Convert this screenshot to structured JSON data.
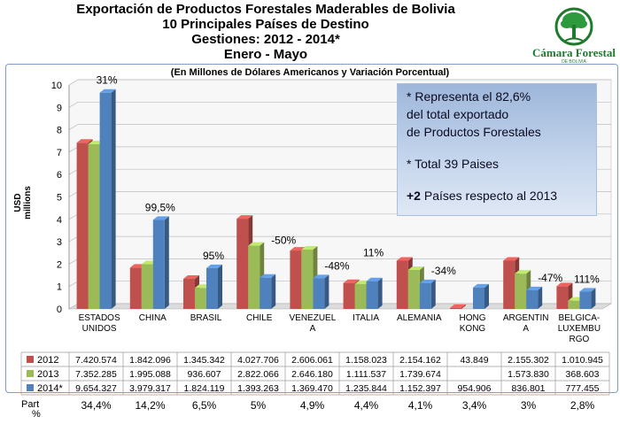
{
  "header": {
    "line1": "Exportación de Productos Forestales Maderables de Bolivia",
    "line2": "10 Principales Países de Destino",
    "line3": "Gestiones: 2012 - 2014*",
    "line4": "Enero - Mayo"
  },
  "logo": {
    "name": "Cámara Forestal",
    "sub": "DE BOLIVIA",
    "icon": "tree-icon",
    "color": "#1f7a2e"
  },
  "chart_data": {
    "type": "bar",
    "subtitle": "(En Millones de Dólares Americanos y Variación Porcentual)",
    "ylabel": "USD millions",
    "ylim": [
      0,
      10
    ],
    "yticks": [
      0,
      1,
      2,
      3,
      4,
      5,
      6,
      7,
      8,
      9,
      10
    ],
    "grid": true,
    "categories": [
      "ESTADOS UNIDOS",
      "CHINA",
      "BRASIL",
      "CHILE",
      "VENEZUELA",
      "ITALIA",
      "ALEMANIA",
      "HONG KONG",
      "ARGENTINA",
      "BELGICA-LUXEMBURGO"
    ],
    "category_label_lines": [
      [
        "ESTADOS",
        "UNIDOS"
      ],
      [
        "CHINA"
      ],
      [
        "BRASIL"
      ],
      [
        "CHILE"
      ],
      [
        "VENEZUEL",
        "A"
      ],
      [
        "ITALIA"
      ],
      [
        "ALEMANIA"
      ],
      [
        "HONG",
        "KONG"
      ],
      [
        "ARGENTIN",
        "A"
      ],
      [
        "BELGICA-",
        "LUXEMBU",
        "RGO"
      ]
    ],
    "series": [
      {
        "name": "2012",
        "color": "#c0504d",
        "values": [
          7.420574,
          1.842096,
          1.345342,
          4.027706,
          2.606061,
          1.158023,
          2.154162,
          0.043849,
          2.155302,
          1.010945
        ],
        "table": [
          "7.420.574",
          "1.842.096",
          "1.345.342",
          "4.027.706",
          "2.606.061",
          "1.158.023",
          "2.154.162",
          "43.849",
          "2.155.302",
          "1.010.945"
        ]
      },
      {
        "name": "2013",
        "color": "#9bbb59",
        "values": [
          7.352285,
          1.995088,
          0.936607,
          2.822066,
          2.64618,
          1.111537,
          1.739674,
          0,
          1.57383,
          0.368603
        ],
        "table": [
          "7.352.285",
          "1.995.088",
          "936.607",
          "2.822.066",
          "2.646.180",
          "1.111.537",
          "1.739.674",
          "",
          "1.573.830",
          "368.603"
        ]
      },
      {
        "name": "2014*",
        "color": "#4f81bd",
        "values": [
          9.654327,
          3.979317,
          1.824119,
          1.393263,
          1.36947,
          1.235844,
          1.152397,
          0.954906,
          0.836801,
          0.777455
        ],
        "table": [
          "9.654.327",
          "3.979.317",
          "1.824.119",
          "1.393.263",
          "1.369.470",
          "1.235.844",
          "1.152.397",
          "954.906",
          "836.801",
          "777.455"
        ]
      }
    ],
    "variation_labels": [
      "31%",
      "99,5%",
      "95%",
      "-50%",
      "-48%",
      "11%",
      "-34%",
      "",
      "-47%",
      "111%"
    ],
    "part_label": [
      "Part",
      "%"
    ],
    "part_values": [
      "34,4%",
      "14,2%",
      "6,5%",
      "5%",
      "4,9%",
      "4,4%",
      "4,1%",
      "3,4%",
      "3%",
      "2,8%"
    ]
  },
  "note": {
    "l1": "* Representa el 82,6%",
    "l2": "del total exportado",
    "l3": "de Productos Forestales",
    "l4": "* Total 39 Paises",
    "l5a": "+2",
    "l5b": " Países respecto al 2013"
  }
}
